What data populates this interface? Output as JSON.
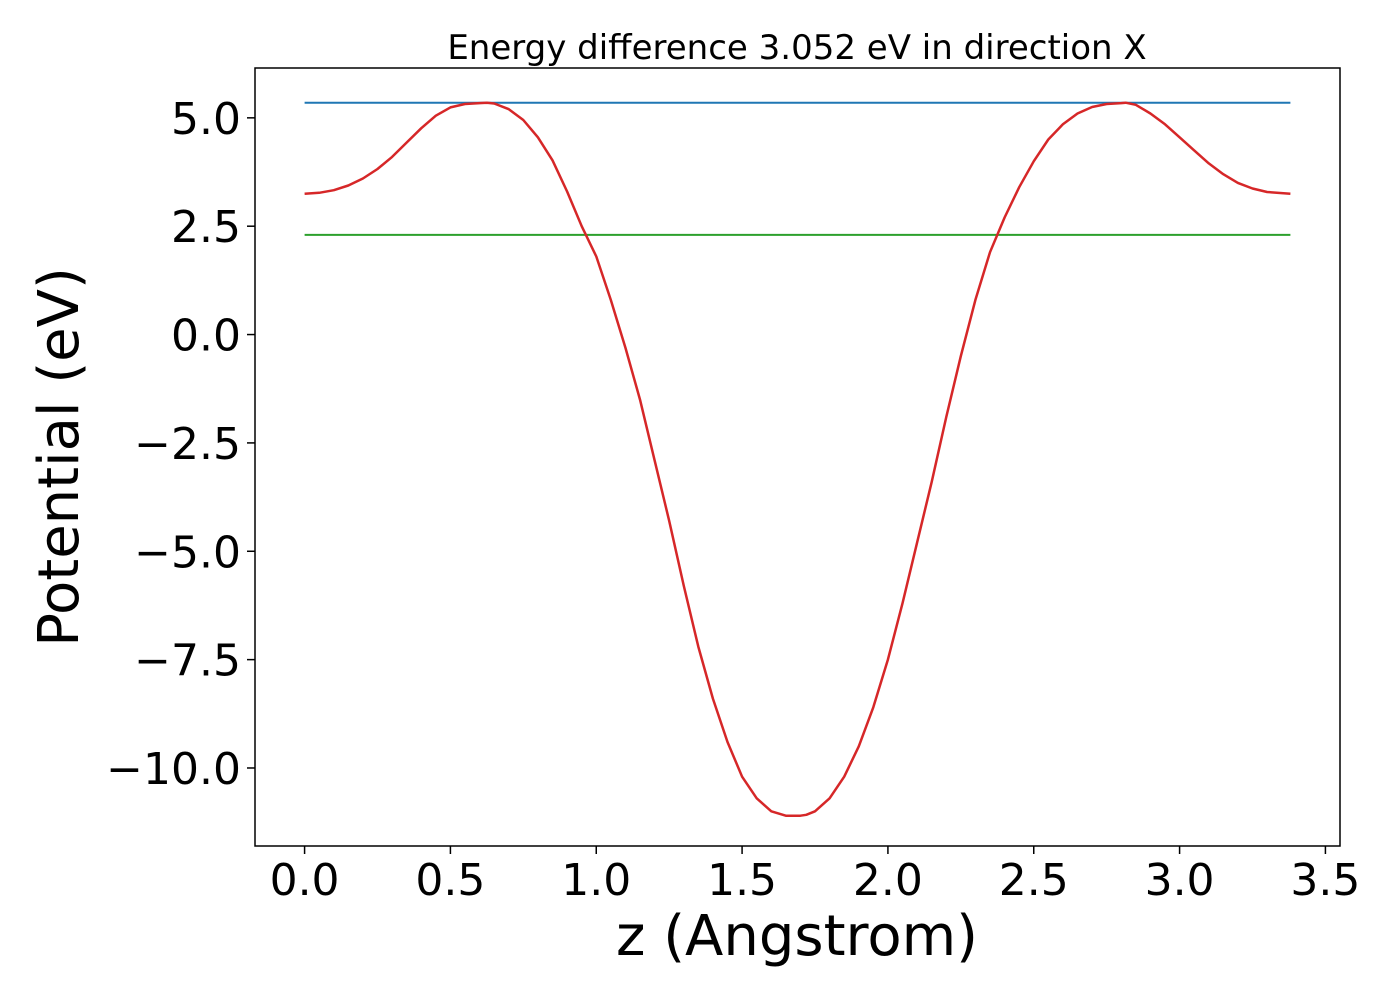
{
  "chart_data": {
    "type": "line",
    "title": "Energy difference 3.052 eV in direction X",
    "xlabel": "z (Angstrom)",
    "ylabel": "Potential (eV)",
    "xlim": [
      -0.17,
      3.55
    ],
    "ylim": [
      -11.8,
      6.15
    ],
    "xticks": [
      0.0,
      0.5,
      1.0,
      1.5,
      2.0,
      2.5,
      3.0,
      3.5
    ],
    "xtick_labels": [
      "0.0",
      "0.5",
      "1.0",
      "1.5",
      "2.0",
      "2.5",
      "3.0",
      "3.5"
    ],
    "yticks": [
      5.0,
      2.5,
      0.0,
      -2.5,
      -5.0,
      -7.5,
      -10.0
    ],
    "ytick_labels": [
      "5.0",
      "2.5",
      "0.0",
      "−2.5",
      "−5.0",
      "−7.5",
      "−10.0"
    ],
    "grid": false,
    "series": [
      {
        "color": "#1f77b4",
        "x": [
          0.0,
          3.38
        ],
        "y": [
          5.35,
          5.35
        ]
      },
      {
        "color": "#2ca02c",
        "x": [
          0.0,
          3.38
        ],
        "y": [
          2.3,
          2.3
        ]
      },
      {
        "color": "#d62728",
        "x": [
          0.0,
          0.05,
          0.1,
          0.15,
          0.2,
          0.25,
          0.3,
          0.35,
          0.4,
          0.45,
          0.5,
          0.55,
          0.6,
          0.625,
          0.65,
          0.7,
          0.75,
          0.8,
          0.85,
          0.9,
          0.95,
          1.0,
          1.05,
          1.1,
          1.15,
          1.2,
          1.25,
          1.3,
          1.35,
          1.4,
          1.45,
          1.5,
          1.55,
          1.6,
          1.65,
          1.7,
          1.72,
          1.75,
          1.8,
          1.85,
          1.9,
          1.95,
          2.0,
          2.05,
          2.1,
          2.15,
          2.2,
          2.25,
          2.3,
          2.35,
          2.4,
          2.45,
          2.5,
          2.55,
          2.6,
          2.65,
          2.7,
          2.75,
          2.8,
          2.815,
          2.85,
          2.9,
          2.95,
          3.0,
          3.05,
          3.1,
          3.15,
          3.2,
          3.25,
          3.3,
          3.38
        ],
        "y": [
          3.25,
          3.27,
          3.33,
          3.44,
          3.6,
          3.82,
          4.1,
          4.43,
          4.76,
          5.05,
          5.24,
          5.32,
          5.34,
          5.35,
          5.33,
          5.2,
          4.95,
          4.55,
          4.02,
          3.3,
          2.5,
          1.8,
          0.8,
          -0.3,
          -1.5,
          -2.9,
          -4.3,
          -5.8,
          -7.2,
          -8.4,
          -9.4,
          -10.2,
          -10.7,
          -11.0,
          -11.1,
          -11.1,
          -11.08,
          -11.0,
          -10.7,
          -10.2,
          -9.5,
          -8.6,
          -7.5,
          -6.2,
          -4.8,
          -3.4,
          -1.9,
          -0.5,
          0.8,
          1.9,
          2.7,
          3.4,
          4.0,
          4.5,
          4.85,
          5.1,
          5.25,
          5.32,
          5.34,
          5.35,
          5.3,
          5.1,
          4.85,
          4.55,
          4.25,
          3.95,
          3.7,
          3.5,
          3.37,
          3.29,
          3.25
        ]
      }
    ]
  }
}
